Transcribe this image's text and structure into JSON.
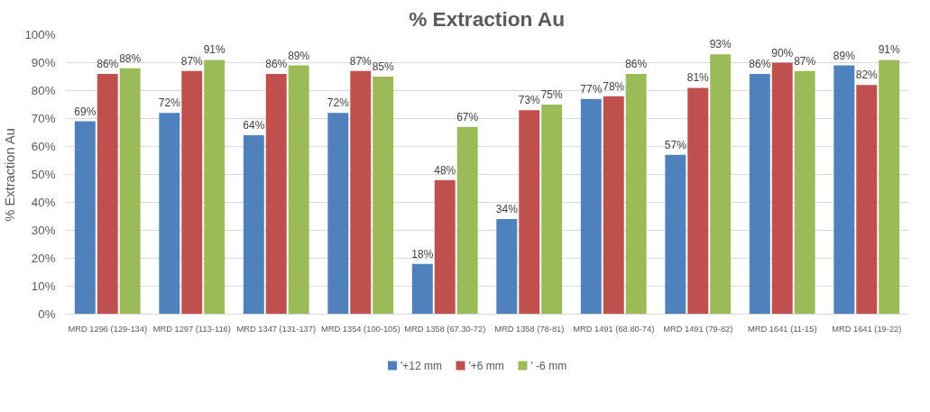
{
  "chart_data": {
    "type": "bar",
    "title": "% Extraction Au",
    "ylabel": "% Extraction Au",
    "categories": [
      "MRD 1296 (129-134)",
      "MRD 1297 (113-116)",
      "MRD 1347 (131-137)",
      "MRD 1354 (100-105)",
      "MRD 1358 (67.30-72)",
      "MRD 1358 (78-81)",
      "MRD 1491 (68.80-74)",
      "MRD 1491 (79-82)",
      "MRD 1641 (11-15)",
      "MRD 1641 (19-22)"
    ],
    "series": [
      {
        "name": "'+12 mm",
        "color": "#4f81bd",
        "values": [
          69,
          72,
          64,
          72,
          18,
          34,
          77,
          57,
          86,
          89
        ],
        "value_labels": [
          "69%",
          "72%",
          "64%",
          "72%",
          "18%",
          "34%",
          "77%",
          "57%",
          "86%",
          "89%"
        ]
      },
      {
        "name": "'+6 mm",
        "color": "#c0504d",
        "values": [
          86,
          87,
          86,
          87,
          48,
          73,
          78,
          81,
          90,
          82
        ],
        "value_labels": [
          "86%",
          "87%",
          "86%",
          "87%",
          "48%",
          "73%",
          "78%",
          "81%",
          "90%",
          "82%"
        ]
      },
      {
        "name": "' -6 mm",
        "color": "#9bbb59",
        "values": [
          88,
          91,
          89,
          85,
          67,
          75,
          86,
          93,
          87,
          91
        ],
        "value_labels": [
          "88%",
          "91%",
          "89%",
          "85%",
          "67%",
          "75%",
          "86%",
          "93%",
          "87%",
          "91%"
        ]
      }
    ],
    "ylim": [
      0,
      100
    ],
    "yticks": [
      {
        "value": 0,
        "label": "0%"
      },
      {
        "value": 10,
        "label": "10%"
      },
      {
        "value": 20,
        "label": "20%"
      },
      {
        "value": 30,
        "label": "30%"
      },
      {
        "value": 40,
        "label": "40%"
      },
      {
        "value": 50,
        "label": "50%"
      },
      {
        "value": 60,
        "label": "60%"
      },
      {
        "value": 70,
        "label": "70%"
      },
      {
        "value": 80,
        "label": "80%"
      },
      {
        "value": 90,
        "label": "90%"
      },
      {
        "value": 100,
        "label": "100%"
      }
    ],
    "grid": "y",
    "legend": "bottom"
  }
}
